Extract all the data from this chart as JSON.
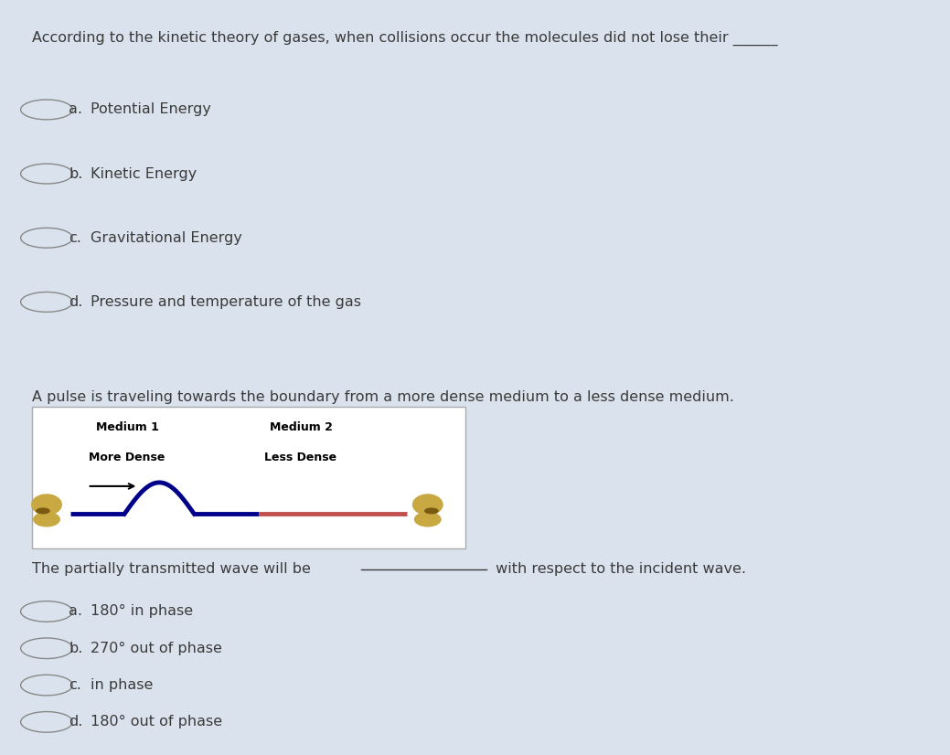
{
  "bg_color": "#dae3ed",
  "panel_bg": "#dce6f0",
  "box_bg": "#ffffff",
  "q1_question": "According to the kinetic theory of gases, when collisions occur the molecules did not lose their ______",
  "q1_options": [
    {
      "label": "a.",
      "text": "Potential Energy"
    },
    {
      "label": "b.",
      "text": "Kinetic Energy"
    },
    {
      "label": "c.",
      "text": "Gravitational Energy"
    },
    {
      "label": "d.",
      "text": "Pressure and temperature of the gas"
    }
  ],
  "q2_question": "A pulse is traveling towards the boundary from a more dense medium to a less dense medium.",
  "q2_diagram": {
    "medium1_label": "Medium 1",
    "medium1_sub": "More Dense",
    "medium2_label": "Medium 2",
    "medium2_sub": "Less Dense",
    "blue_line_color": "#00008B",
    "red_line_color": "#c0504d",
    "arrow_color": "#000000",
    "hand_color": "#c8a840"
  },
  "q2_partial_text1": "The partially transmitted wave will be ",
  "q2_partial_text2": " with respect to the incident wave.",
  "q2_options": [
    {
      "label": "a.",
      "text": "180° in phase"
    },
    {
      "label": "b.",
      "text": "270° out of phase"
    },
    {
      "label": "c.",
      "text": "in phase"
    },
    {
      "label": "d.",
      "text": "180° out of phase"
    }
  ],
  "font_size_question": 11.5,
  "font_size_option": 11.5,
  "text_color": "#3a3a3a"
}
